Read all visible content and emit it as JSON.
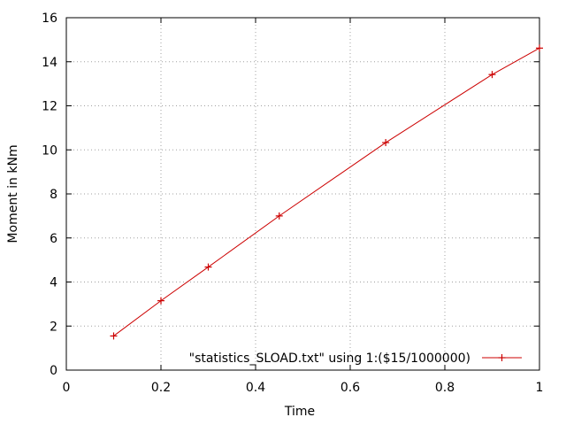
{
  "chart_data": {
    "type": "line",
    "title": "",
    "xlabel": "Time",
    "ylabel": "Moment in kNm",
    "xlim": [
      0,
      1
    ],
    "ylim": [
      0,
      16
    ],
    "xticks": [
      0,
      0.2,
      0.4,
      0.6,
      0.8,
      1
    ],
    "yticks": [
      0,
      2,
      4,
      6,
      8,
      10,
      12,
      14,
      16
    ],
    "xtick_labels": [
      "0",
      "0.2",
      "0.4",
      "0.6",
      "0.8",
      "1"
    ],
    "ytick_labels": [
      "0",
      "2",
      "4",
      "6",
      "8",
      "10",
      "12",
      "14",
      "16"
    ],
    "grid": true,
    "legend_position": "bottom-right",
    "series": [
      {
        "name": "\"statistics_SLOAD.txt\" using 1:($15/1000000)",
        "color": "#cc0000",
        "marker": "plus",
        "x": [
          0.1,
          0.2,
          0.3,
          0.45,
          0.675,
          0.9,
          1.0
        ],
        "y": [
          1.55,
          3.15,
          4.68,
          7.0,
          10.33,
          13.42,
          14.62
        ]
      }
    ]
  }
}
